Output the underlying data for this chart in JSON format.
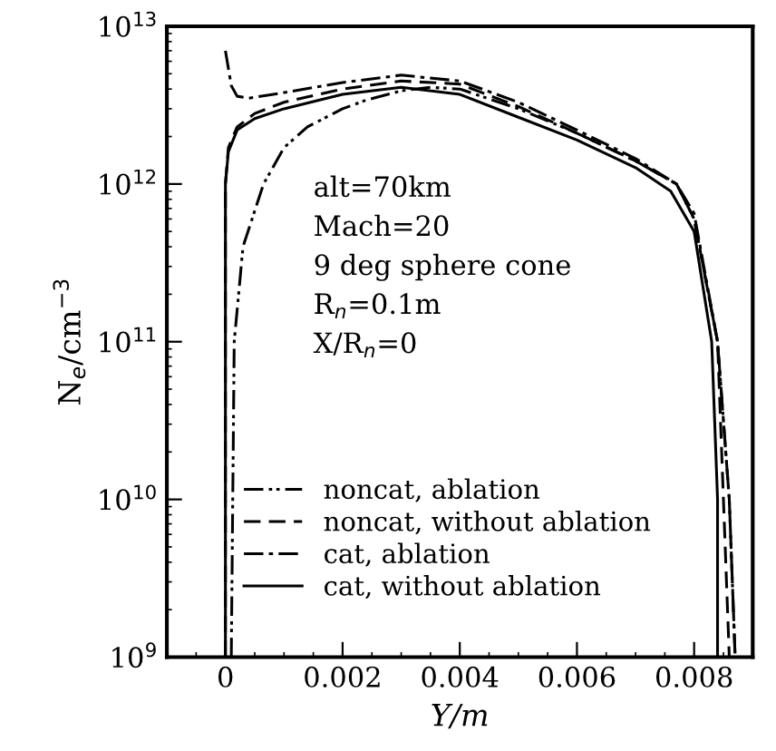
{
  "chart_data": {
    "type": "line",
    "xlabel": "Y/m",
    "ylabel": "N$_{e}$/cm$^{−3}$",
    "log": "y",
    "xlim": [
      -0.001,
      0.009
    ],
    "xticks": [
      0,
      0.002,
      0.004,
      0.006,
      0.008
    ],
    "ylim": [
      1000000000.0,
      10000000000000.0
    ],
    "yticks": [
      {
        "value": 1000000000.0,
        "label": "10$^{9}$"
      },
      {
        "value": 10000000000.0,
        "label": "10$^{10}$"
      },
      {
        "value": 100000000000.0,
        "label": "10$^{11}$"
      },
      {
        "value": 1000000000000.0,
        "label": "10$^{12}$"
      },
      {
        "value": 10000000000000.0,
        "label": "10$^{13}$"
      }
    ],
    "grid": false,
    "legend": "bottom left",
    "annotations": [
      "alt=70km",
      "Mach=20",
      "9 deg sphere cone",
      "R$_{n}$=0.1m",
      "X/R$_{n}$=0"
    ],
    "series": [
      {
        "name": "noncat, ablation",
        "color": "#000000",
        "line_style": "dashdotdot",
        "x": [
          0.0001,
          0.00015,
          0.0003,
          0.00065,
          0.001,
          0.0014,
          0.002,
          0.0024,
          0.003,
          0.0035,
          0.004,
          0.005,
          0.006,
          0.007,
          0.0077,
          0.008,
          0.0084,
          0.0086,
          0.0087
        ],
        "values": [
          1000000000.0,
          100000000000.0,
          400000000000.0,
          1000000000000.0,
          1700000000000.0,
          2300000000000.0,
          3000000000000.0,
          3400000000000.0,
          3900000000000.0,
          4100000000000.0,
          4000000000000.0,
          3000000000000.0,
          2100000000000.0,
          1400000000000.0,
          1000000000000.0,
          600000000000.0,
          100000000000.0,
          10000000000.0,
          1000000000.0
        ]
      },
      {
        "name": "noncat, without ablation",
        "color": "#000000",
        "line_style": "dashed",
        "x": [
          0,
          0,
          5e-05,
          0.0002,
          0.0005,
          0.001,
          0.002,
          0.003,
          0.004,
          0.005,
          0.006,
          0.007,
          0.0077,
          0.008,
          0.0084,
          0.0085,
          0.0086
        ],
        "values": [
          1000000000.0,
          1000000000000.0,
          1700000000000.0,
          2300000000000.0,
          2800000000000.0,
          3300000000000.0,
          4000000000000.0,
          4500000000000.0,
          4300000000000.0,
          3100000000000.0,
          2100000000000.0,
          1400000000000.0,
          1000000000000.0,
          600000000000.0,
          100000000000.0,
          10000000000.0,
          1000000000.0
        ]
      },
      {
        "name": "cat, ablation",
        "color": "#000000",
        "line_style": "dashdot",
        "x": [
          0,
          0.0001,
          0.0002,
          0.0004,
          0.001,
          0.002,
          0.003,
          0.004,
          0.005,
          0.006,
          0.007,
          0.0077,
          0.008,
          0.0084,
          0.0086,
          0.0087
        ],
        "values": [
          7000000000000.0,
          4200000000000.0,
          3600000000000.0,
          3500000000000.0,
          3800000000000.0,
          4400000000000.0,
          4900000000000.0,
          4500000000000.0,
          3300000000000.0,
          2200000000000.0,
          1450000000000.0,
          1000000000000.0,
          650000000000.0,
          100000000000.0,
          10000000000.0,
          1000000000.0
        ]
      },
      {
        "name": "cat, without ablation",
        "color": "#000000",
        "line_style": "solid",
        "x": [
          0,
          0,
          5e-05,
          0.0002,
          0.0005,
          0.001,
          0.002,
          0.003,
          0.004,
          0.005,
          0.006,
          0.007,
          0.0076,
          0.008,
          0.0083,
          0.0084,
          0.0084
        ],
        "values": [
          1000000000.0,
          1000000000000.0,
          1600000000000.0,
          2200000000000.0,
          2600000000000.0,
          3000000000000.0,
          3700000000000.0,
          4100000000000.0,
          3700000000000.0,
          2650000000000.0,
          1900000000000.0,
          1270000000000.0,
          900000000000.0,
          500000000000.0,
          100000000000.0,
          10000000000.0,
          1000000000.0
        ]
      }
    ]
  }
}
